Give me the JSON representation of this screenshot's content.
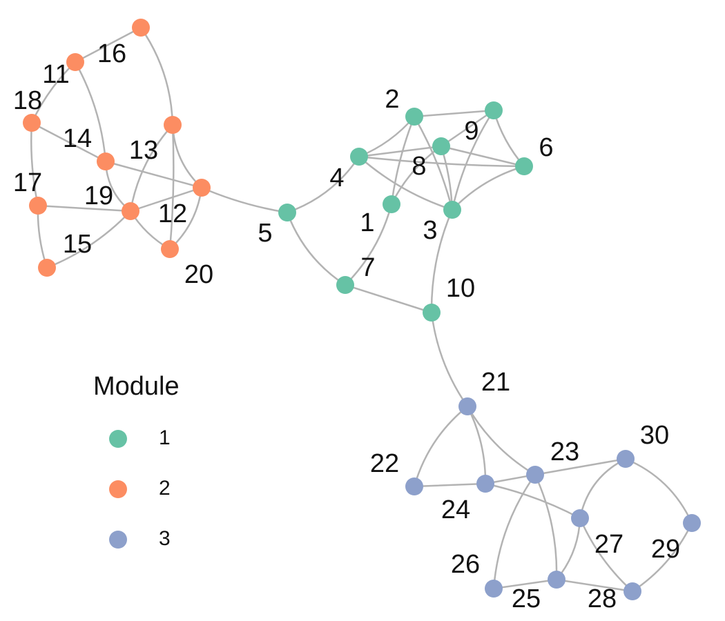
{
  "legend": {
    "title": "Module",
    "entries": [
      {
        "label": "1",
        "module": 1
      },
      {
        "label": "2",
        "module": 2
      },
      {
        "label": "3",
        "module": 3
      }
    ]
  },
  "colors": {
    "module_1": "#66c2a5",
    "module_2": "#fc8d62",
    "module_3": "#8da0cb",
    "edge": "#b3b3b3"
  },
  "nodes": [
    {
      "id": "1",
      "label": "1",
      "module": 1
    },
    {
      "id": "2",
      "label": "2",
      "module": 1
    },
    {
      "id": "3",
      "label": "3",
      "module": 1
    },
    {
      "id": "4",
      "label": "4",
      "module": 1
    },
    {
      "id": "5",
      "label": "5",
      "module": 1
    },
    {
      "id": "6",
      "label": "6",
      "module": 1
    },
    {
      "id": "7",
      "label": "7",
      "module": 1
    },
    {
      "id": "8",
      "label": "8",
      "module": 1
    },
    {
      "id": "9",
      "label": "9",
      "module": 1
    },
    {
      "id": "10",
      "label": "10",
      "module": 1
    },
    {
      "id": "11",
      "label": "11",
      "module": 2
    },
    {
      "id": "12",
      "label": "12",
      "module": 2
    },
    {
      "id": "13",
      "label": "13",
      "module": 2
    },
    {
      "id": "14",
      "label": "14",
      "module": 2
    },
    {
      "id": "15",
      "label": "15",
      "module": 2
    },
    {
      "id": "16",
      "label": "16",
      "module": 2
    },
    {
      "id": "17",
      "label": "17",
      "module": 2
    },
    {
      "id": "18",
      "label": "18",
      "module": 2
    },
    {
      "id": "19",
      "label": "19",
      "module": 2
    },
    {
      "id": "20",
      "label": "20",
      "module": 2
    },
    {
      "id": "21",
      "label": "21",
      "module": 3
    },
    {
      "id": "22",
      "label": "22",
      "module": 3
    },
    {
      "id": "23",
      "label": "23",
      "module": 3
    },
    {
      "id": "24",
      "label": "24",
      "module": 3
    },
    {
      "id": "25",
      "label": "25",
      "module": 3
    },
    {
      "id": "26",
      "label": "26",
      "module": 3
    },
    {
      "id": "27",
      "label": "27",
      "module": 3
    },
    {
      "id": "28",
      "label": "28",
      "module": 3
    },
    {
      "id": "29",
      "label": "29",
      "module": 3
    },
    {
      "id": "30",
      "label": "30",
      "module": 3
    }
  ],
  "edges": [
    [
      "2",
      "9"
    ],
    [
      "2",
      "4"
    ],
    [
      "2",
      "1"
    ],
    [
      "2",
      "3"
    ],
    [
      "9",
      "8"
    ],
    [
      "9",
      "3"
    ],
    [
      "9",
      "6"
    ],
    [
      "4",
      "8"
    ],
    [
      "4",
      "6"
    ],
    [
      "4",
      "3"
    ],
    [
      "4",
      "5"
    ],
    [
      "8",
      "6"
    ],
    [
      "8",
      "3"
    ],
    [
      "8",
      "1"
    ],
    [
      "6",
      "3"
    ],
    [
      "1",
      "7"
    ],
    [
      "3",
      "10"
    ],
    [
      "5",
      "7"
    ],
    [
      "5",
      "12"
    ],
    [
      "7",
      "10"
    ],
    [
      "10",
      "21"
    ],
    [
      "16",
      "11"
    ],
    [
      "16",
      "13"
    ],
    [
      "11",
      "18"
    ],
    [
      "11",
      "14"
    ],
    [
      "18",
      "14"
    ],
    [
      "18",
      "17"
    ],
    [
      "14",
      "12"
    ],
    [
      "14",
      "19"
    ],
    [
      "13",
      "12"
    ],
    [
      "13",
      "19"
    ],
    [
      "13",
      "20"
    ],
    [
      "17",
      "19"
    ],
    [
      "17",
      "15"
    ],
    [
      "19",
      "12"
    ],
    [
      "19",
      "20"
    ],
    [
      "19",
      "15"
    ],
    [
      "12",
      "20"
    ],
    [
      "21",
      "22"
    ],
    [
      "21",
      "24"
    ],
    [
      "21",
      "23"
    ],
    [
      "22",
      "24"
    ],
    [
      "24",
      "23"
    ],
    [
      "24",
      "27"
    ],
    [
      "23",
      "30"
    ],
    [
      "23",
      "26"
    ],
    [
      "23",
      "25"
    ],
    [
      "30",
      "27"
    ],
    [
      "30",
      "29"
    ],
    [
      "27",
      "25"
    ],
    [
      "27",
      "28"
    ],
    [
      "26",
      "25"
    ],
    [
      "25",
      "28"
    ],
    [
      "29",
      "28"
    ]
  ]
}
